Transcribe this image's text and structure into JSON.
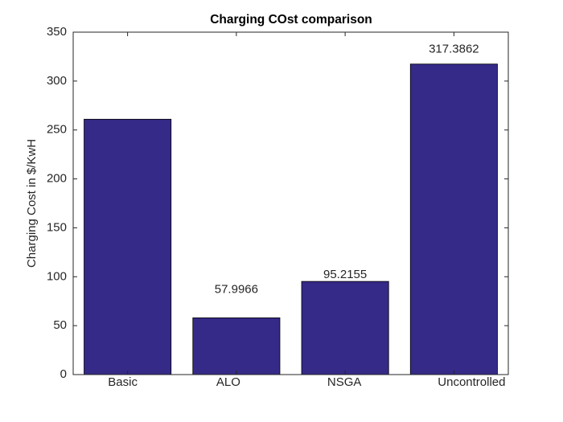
{
  "chart_data": {
    "type": "bar",
    "title": "Charging COst comparison",
    "y_label": "Charging Cost in $/KwH",
    "categories": [
      "Basic",
      "ALO",
      "NSGA",
      "Uncontrolled"
    ],
    "values": [
      261,
      57.9966,
      95.2155,
      317.3862
    ],
    "value_labels": [
      null,
      "57.9966",
      "95.2155",
      "317.3862"
    ],
    "color": "#352a87",
    "ylim": [
      0,
      350
    ],
    "yticks": [
      0,
      50,
      100,
      150,
      200,
      250,
      300,
      350
    ]
  }
}
